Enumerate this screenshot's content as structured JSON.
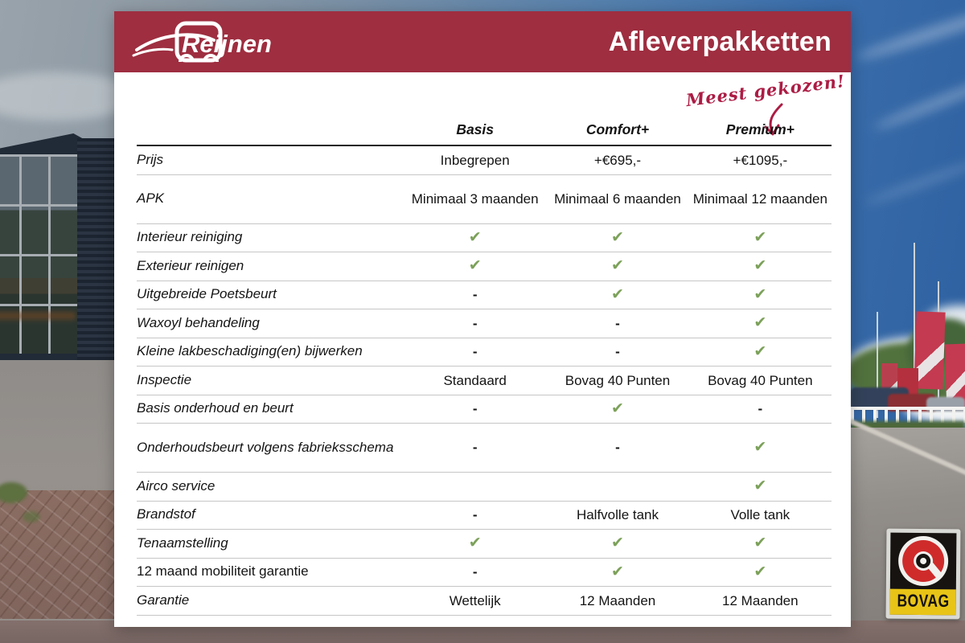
{
  "header": {
    "logo_text": "Reijnen",
    "title": "Afleverpakketten",
    "background_color": "#9e2e40"
  },
  "annotation": {
    "text": "Meest gekozen!",
    "color": "#ac1c44",
    "target_column": "Premium+"
  },
  "table": {
    "columns": [
      "Basis",
      "Comfort+",
      "Premium+"
    ],
    "check_symbol": "✔",
    "check_color": "#7ca15a",
    "rows": [
      {
        "label": "Prijs",
        "values": [
          "Inbegrepen",
          "+€695,-",
          "+€1095,-"
        ]
      },
      {
        "label": "APK",
        "tall": true,
        "values": [
          "Minimaal 3 maanden",
          "Minimaal 6 maanden",
          "Minimaal 12 maanden"
        ]
      },
      {
        "label": "Interieur reiniging",
        "values": [
          "✔",
          "✔",
          "✔"
        ]
      },
      {
        "label": "Exterieur reinigen",
        "values": [
          "✔",
          "✔",
          "✔"
        ]
      },
      {
        "label": "Uitgebreide Poetsbeurt",
        "values": [
          "-",
          "✔",
          "✔"
        ]
      },
      {
        "label": "Waxoyl behandeling",
        "values": [
          "-",
          "-",
          "✔"
        ]
      },
      {
        "label": "Kleine lakbeschadiging(en) bijwerken",
        "values": [
          "-",
          "-",
          "✔"
        ]
      },
      {
        "label": "Inspectie",
        "values": [
          "Standaard",
          "Bovag 40 Punten",
          "Bovag 40 Punten"
        ]
      },
      {
        "label": "Basis onderhoud en beurt",
        "values": [
          "-",
          "✔",
          "-"
        ]
      },
      {
        "label": "Onderhoudsbeurt volgens fabrieksschema",
        "tall": true,
        "values": [
          "-",
          "-",
          "✔"
        ]
      },
      {
        "label": "Airco service",
        "values": [
          "",
          "",
          "✔"
        ]
      },
      {
        "label": "Brandstof",
        "values": [
          "-",
          "Halfvolle tank",
          "Volle tank"
        ]
      },
      {
        "label": "Tenaamstelling",
        "values": [
          "✔",
          "✔",
          "✔"
        ]
      },
      {
        "label": "12 maand mobiliteit garantie",
        "upright": true,
        "values": [
          "-",
          "✔",
          "✔"
        ]
      },
      {
        "label": "Garantie",
        "values": [
          "Wettelijk",
          "12 Maanden",
          "12 Maanden"
        ]
      }
    ]
  },
  "badge": {
    "text": "BOVAG",
    "band_color": "#e8c417"
  }
}
